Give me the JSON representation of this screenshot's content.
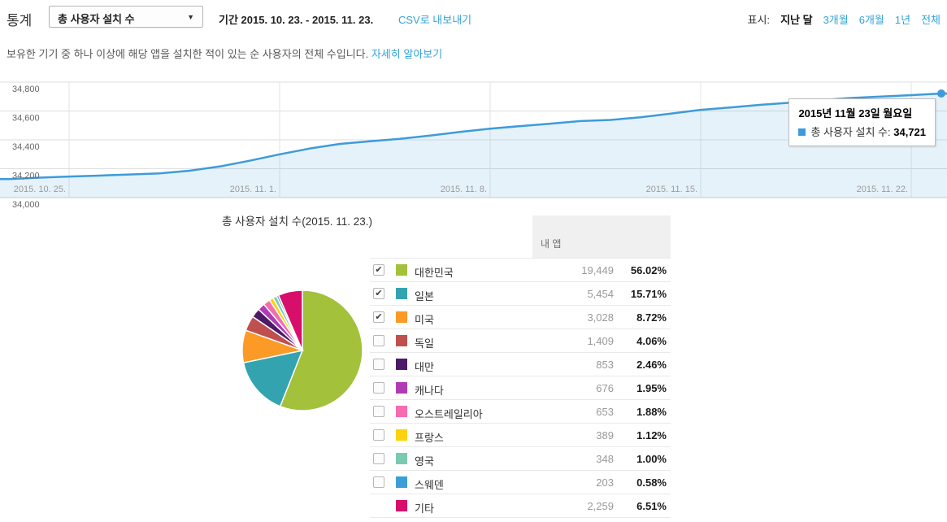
{
  "header": {
    "title": "통계",
    "metric_dropdown": "총 사용자 설치 수",
    "period_label": "기간",
    "period_value": "2015. 10. 23. - 2015. 11. 23.",
    "export_csv": "CSV로 내보내기",
    "range": {
      "label": "표시:",
      "options": [
        {
          "label": "지난 달",
          "selected": true
        },
        {
          "label": "3개월",
          "selected": false
        },
        {
          "label": "6개월",
          "selected": false
        },
        {
          "label": "1년",
          "selected": false
        },
        {
          "label": "전체",
          "selected": false
        }
      ]
    }
  },
  "description": {
    "text": "보유한 기기 중 하나 이상에 해당 앱을 설치한 적이 있는 순 사용자의 전체 수입니다.",
    "link": "자세히 알아보기"
  },
  "tooltip": {
    "title": "2015년 11월 23일 월요일",
    "series_label": "총 사용자 설치 수:",
    "value": "34,721",
    "marker_color": "#3d9bdb"
  },
  "chart_data": [
    {
      "type": "line",
      "title": "총 사용자 설치 수",
      "x": [
        "2015. 10. 23.",
        "2015. 10. 24.",
        "2015. 10. 25.",
        "2015. 10. 26.",
        "2015. 10. 27.",
        "2015. 10. 28.",
        "2015. 10. 29.",
        "2015. 10. 30.",
        "2015. 10. 31.",
        "2015. 11. 1.",
        "2015. 11. 2.",
        "2015. 11. 3.",
        "2015. 11. 4.",
        "2015. 11. 5.",
        "2015. 11. 6.",
        "2015. 11. 7.",
        "2015. 11. 8.",
        "2015. 11. 9.",
        "2015. 11. 10.",
        "2015. 11. 11.",
        "2015. 11. 12.",
        "2015. 11. 13.",
        "2015. 11. 14.",
        "2015. 11. 15.",
        "2015. 11. 16.",
        "2015. 11. 17.",
        "2015. 11. 18.",
        "2015. 11. 19.",
        "2015. 11. 20.",
        "2015. 11. 21.",
        "2015. 11. 22.",
        "2015. 11. 23."
      ],
      "series": [
        {
          "name": "총 사용자 설치 수",
          "values": [
            34128,
            34138,
            34146,
            34152,
            34160,
            34168,
            34186,
            34215,
            34255,
            34300,
            34340,
            34372,
            34390,
            34407,
            34430,
            34455,
            34478,
            34495,
            34512,
            34530,
            34538,
            34556,
            34582,
            34608,
            34625,
            34643,
            34658,
            34675,
            34690,
            34700,
            34710,
            34721
          ]
        }
      ],
      "ylim": [
        34000,
        34800
      ],
      "yticks": [
        34800,
        34600,
        34400,
        34200,
        34000
      ],
      "xtick_indices": [
        2,
        9,
        16,
        23,
        30
      ],
      "xtick_labels": [
        "2015. 10. 25.",
        "2015. 11. 1.",
        "2015. 11. 8.",
        "2015. 11. 15.",
        "2015. 11. 22."
      ],
      "grid": true,
      "legend": "none",
      "line_color": "#3d9bdb",
      "area_fill": "rgba(61,155,219,0.13)",
      "highlight_point": {
        "x": "2015. 11. 23.",
        "value": 34721
      }
    },
    {
      "type": "pie",
      "title": "총 사용자 설치 수(2015. 11. 23.)",
      "labels": [
        "대한민국",
        "일본",
        "미국",
        "독일",
        "대만",
        "캐나다",
        "오스트레일리아",
        "프랑스",
        "영국",
        "스웨덴",
        "기타"
      ],
      "values": [
        19449,
        5454,
        3028,
        1409,
        853,
        676,
        653,
        389,
        348,
        203,
        2259
      ],
      "percents": [
        56.02,
        15.71,
        8.72,
        4.06,
        2.46,
        1.95,
        1.88,
        1.12,
        1.0,
        0.58,
        6.51
      ],
      "colors": [
        "#a3c13a",
        "#33a3b0",
        "#fb9a26",
        "#c0504d",
        "#4d1a68",
        "#b13bb5",
        "#f56cb1",
        "#fed20c",
        "#7acab2",
        "#3b9ed9",
        "#d80e6b"
      ],
      "start": "12-oclock-clockwise",
      "legend": "table-right"
    }
  ],
  "breakdown": {
    "section_title": "총 사용자 설치 수(2015. 11. 23.)",
    "column_header": "내 앱",
    "rows": [
      {
        "label": "대한민국",
        "value": "19,449",
        "percent": "56.02%",
        "color": "#a3c13a",
        "has_checkbox": true,
        "checked": true
      },
      {
        "label": "일본",
        "value": "5,454",
        "percent": "15.71%",
        "color": "#33a3b0",
        "has_checkbox": true,
        "checked": true
      },
      {
        "label": "미국",
        "value": "3,028",
        "percent": "8.72%",
        "color": "#fb9a26",
        "has_checkbox": true,
        "checked": true
      },
      {
        "label": "독일",
        "value": "1,409",
        "percent": "4.06%",
        "color": "#c0504d",
        "has_checkbox": true,
        "checked": false
      },
      {
        "label": "대만",
        "value": "853",
        "percent": "2.46%",
        "color": "#4d1a68",
        "has_checkbox": true,
        "checked": false
      },
      {
        "label": "캐나다",
        "value": "676",
        "percent": "1.95%",
        "color": "#b13bb5",
        "has_checkbox": true,
        "checked": false
      },
      {
        "label": "오스트레일리아",
        "value": "653",
        "percent": "1.88%",
        "color": "#f56cb1",
        "has_checkbox": true,
        "checked": false
      },
      {
        "label": "프랑스",
        "value": "389",
        "percent": "1.12%",
        "color": "#fed20c",
        "has_checkbox": true,
        "checked": false
      },
      {
        "label": "영국",
        "value": "348",
        "percent": "1.00%",
        "color": "#7acab2",
        "has_checkbox": true,
        "checked": false
      },
      {
        "label": "스웨덴",
        "value": "203",
        "percent": "0.58%",
        "color": "#3b9ed9",
        "has_checkbox": true,
        "checked": false
      },
      {
        "label": "기타",
        "value": "2,259",
        "percent": "6.51%",
        "color": "#d80e6b",
        "has_checkbox": false,
        "checked": false
      }
    ]
  },
  "colors": {
    "link_blue": "#32a3db",
    "line_blue": "#3d9bdb",
    "grid_gray": "#e0e0e0",
    "header_box_gray": "#f0f0f0"
  }
}
